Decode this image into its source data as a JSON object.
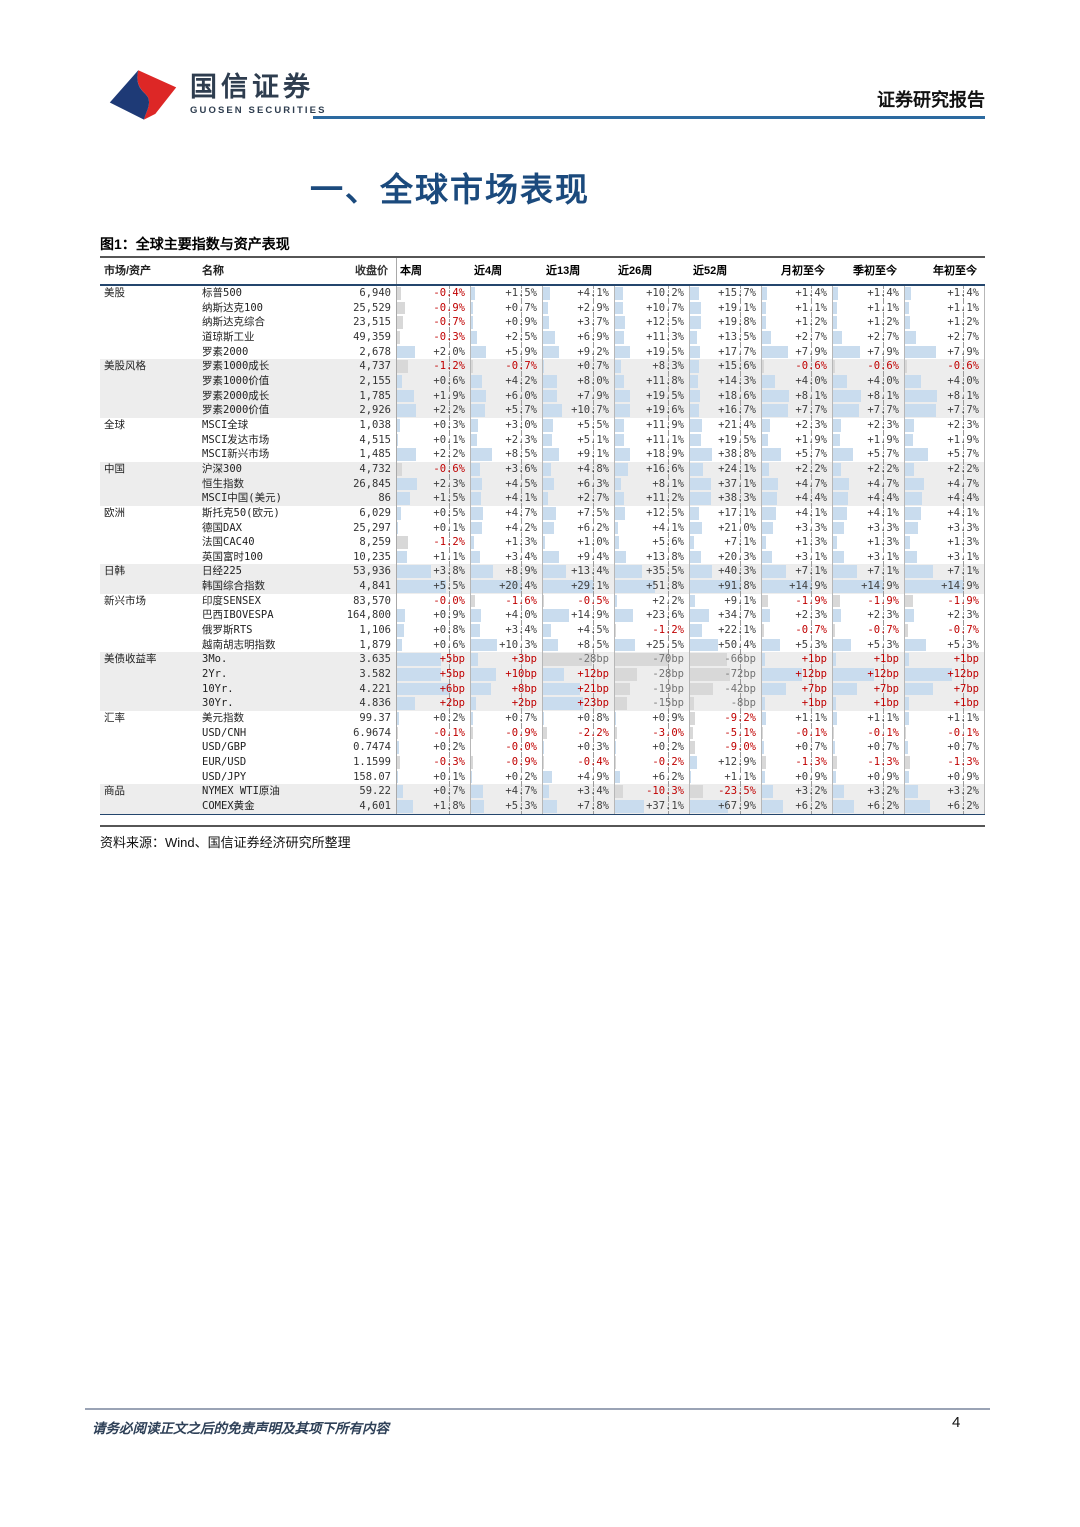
{
  "header": {
    "brand_cn": "国信证券",
    "brand_en": "GUOSEN SECURITIES",
    "report_type": "证券研究报告"
  },
  "section_title": "一、全球市场表现",
  "figure_caption": "图1：全球主要指数与资产表现",
  "source_note": "资料来源：Wind、国信证券经济研究所整理",
  "footer": {
    "disclaimer": "请务必阅读正文之后的免责声明及其项下所有内容",
    "page_number": "4"
  },
  "colors": {
    "accent_blue": "#1b4a7d",
    "header_rule_blue": "#2c6aa0",
    "negative_text": "#c00000",
    "bar_positive": "#c9dcee",
    "bar_negative": "#d8d8d8",
    "logo_red": "#dd2726",
    "logo_blue": "#1e3a76"
  },
  "table": {
    "columns": [
      "市场/资产",
      "名称",
      "收盘价",
      "本周",
      "近4周",
      "近13周",
      "近26周",
      "近52周",
      "月初至今",
      "季初至今",
      "年初至今"
    ],
    "groups": [
      {
        "market": "美股",
        "rows": [
          {
            "name": "标普500",
            "close": "6,940",
            "changes": [
              "-0.4%",
              "+1.5%",
              "+4.1%",
              "+10.2%",
              "+15.7%",
              "+1.4%",
              "+1.4%",
              "+1.4%"
            ]
          },
          {
            "name": "纳斯达克100",
            "close": "25,529",
            "changes": [
              "-0.9%",
              "+0.7%",
              "+2.9%",
              "+10.7%",
              "+19.1%",
              "+1.1%",
              "+1.1%",
              "+1.1%"
            ]
          },
          {
            "name": "纳斯达克综合",
            "close": "23,515",
            "changes": [
              "-0.7%",
              "+0.9%",
              "+3.7%",
              "+12.5%",
              "+19.8%",
              "+1.2%",
              "+1.2%",
              "+1.2%"
            ]
          },
          {
            "name": "道琼斯工业",
            "close": "49,359",
            "changes": [
              "-0.3%",
              "+2.5%",
              "+6.9%",
              "+11.3%",
              "+13.5%",
              "+2.7%",
              "+2.7%",
              "+2.7%"
            ]
          },
          {
            "name": "罗素2000",
            "close": "2,678",
            "changes": [
              "+2.0%",
              "+5.9%",
              "+9.2%",
              "+19.5%",
              "+17.7%",
              "+7.9%",
              "+7.9%",
              "+7.9%"
            ]
          }
        ]
      },
      {
        "market": "美股风格",
        "rows": [
          {
            "name": "罗素1000成长",
            "close": "4,737",
            "changes": [
              "-1.2%",
              "-0.7%",
              "+0.7%",
              "+8.3%",
              "+15.6%",
              "-0.6%",
              "-0.6%",
              "-0.6%"
            ]
          },
          {
            "name": "罗素1000价值",
            "close": "2,155",
            "changes": [
              "+0.6%",
              "+4.2%",
              "+8.0%",
              "+11.8%",
              "+14.3%",
              "+4.0%",
              "+4.0%",
              "+4.0%"
            ]
          },
          {
            "name": "罗素2000成长",
            "close": "1,785",
            "changes": [
              "+1.9%",
              "+6.0%",
              "+7.9%",
              "+19.5%",
              "+18.6%",
              "+8.1%",
              "+8.1%",
              "+8.1%"
            ]
          },
          {
            "name": "罗素2000价值",
            "close": "2,926",
            "changes": [
              "+2.2%",
              "+5.7%",
              "+10.7%",
              "+19.6%",
              "+16.7%",
              "+7.7%",
              "+7.7%",
              "+7.7%"
            ]
          }
        ]
      },
      {
        "market": "全球",
        "rows": [
          {
            "name": "MSCI全球",
            "close": "1,038",
            "changes": [
              "+0.3%",
              "+3.0%",
              "+5.5%",
              "+11.9%",
              "+21.4%",
              "+2.3%",
              "+2.3%",
              "+2.3%"
            ]
          },
          {
            "name": "MSCI发达市场",
            "close": "4,515",
            "changes": [
              "+0.1%",
              "+2.3%",
              "+5.1%",
              "+11.1%",
              "+19.5%",
              "+1.9%",
              "+1.9%",
              "+1.9%"
            ]
          },
          {
            "name": "MSCI新兴市场",
            "close": "1,485",
            "changes": [
              "+2.2%",
              "+8.5%",
              "+9.1%",
              "+18.9%",
              "+38.8%",
              "+5.7%",
              "+5.7%",
              "+5.7%"
            ]
          }
        ]
      },
      {
        "market": "中国",
        "rows": [
          {
            "name": "沪深300",
            "close": "4,732",
            "changes": [
              "-0.6%",
              "+3.6%",
              "+4.8%",
              "+16.6%",
              "+24.1%",
              "+2.2%",
              "+2.2%",
              "+2.2%"
            ]
          },
          {
            "name": "恒生指数",
            "close": "26,845",
            "changes": [
              "+2.3%",
              "+4.5%",
              "+6.3%",
              "+8.1%",
              "+37.1%",
              "+4.7%",
              "+4.7%",
              "+4.7%"
            ]
          },
          {
            "name": "MSCI中国(美元)",
            "close": "86",
            "changes": [
              "+1.5%",
              "+4.1%",
              "+2.7%",
              "+11.2%",
              "+38.3%",
              "+4.4%",
              "+4.4%",
              "+4.4%"
            ]
          }
        ]
      },
      {
        "market": "欧洲",
        "rows": [
          {
            "name": "斯托克50(欧元)",
            "close": "6,029",
            "changes": [
              "+0.5%",
              "+4.7%",
              "+7.5%",
              "+12.5%",
              "+17.1%",
              "+4.1%",
              "+4.1%",
              "+4.1%"
            ]
          },
          {
            "name": "德国DAX",
            "close": "25,297",
            "changes": [
              "+0.1%",
              "+4.2%",
              "+6.2%",
              "+4.1%",
              "+21.0%",
              "+3.3%",
              "+3.3%",
              "+3.3%"
            ]
          },
          {
            "name": "法国CAC40",
            "close": "8,259",
            "changes": [
              "-1.2%",
              "+1.3%",
              "+1.0%",
              "+5.6%",
              "+7.1%",
              "+1.3%",
              "+1.3%",
              "+1.3%"
            ]
          },
          {
            "name": "英国富时100",
            "close": "10,235",
            "changes": [
              "+1.1%",
              "+3.4%",
              "+9.4%",
              "+13.8%",
              "+20.3%",
              "+3.1%",
              "+3.1%",
              "+3.1%"
            ]
          }
        ]
      },
      {
        "market": "日韩",
        "rows": [
          {
            "name": "日经225",
            "close": "53,936",
            "changes": [
              "+3.8%",
              "+8.9%",
              "+13.4%",
              "+35.5%",
              "+40.3%",
              "+7.1%",
              "+7.1%",
              "+7.1%"
            ]
          },
          {
            "name": "韩国综合指数",
            "close": "4,841",
            "changes": [
              "+5.5%",
              "+20.4%",
              "+29.1%",
              "+51.8%",
              "+91.8%",
              "+14.9%",
              "+14.9%",
              "+14.9%"
            ]
          }
        ]
      },
      {
        "market": "新兴市场",
        "rows": [
          {
            "name": "印度SENSEX",
            "close": "83,570",
            "changes": [
              "-0.0%",
              "-1.6%",
              "-0.5%",
              "+2.2%",
              "+9.1%",
              "-1.9%",
              "-1.9%",
              "-1.9%"
            ]
          },
          {
            "name": "巴西IBOVESPA",
            "close": "164,800",
            "changes": [
              "+0.9%",
              "+4.0%",
              "+14.9%",
              "+23.6%",
              "+34.7%",
              "+2.3%",
              "+2.3%",
              "+2.3%"
            ]
          },
          {
            "name": "俄罗斯RTS",
            "close": "1,106",
            "changes": [
              "+0.8%",
              "+3.4%",
              "+4.5%",
              "-1.2%",
              "+22.1%",
              "-0.7%",
              "-0.7%",
              "-0.7%"
            ]
          },
          {
            "name": "越南胡志明指数",
            "close": "1,879",
            "changes": [
              "+0.6%",
              "+10.3%",
              "+8.5%",
              "+25.5%",
              "+50.4%",
              "+5.3%",
              "+5.3%",
              "+5.3%"
            ]
          }
        ]
      },
      {
        "market": "美债收益率",
        "rows": [
          {
            "name": "3Mo.",
            "close": "3.635",
            "changes": [
              "+5bp",
              "+3bp",
              "-28bp",
              "-70bp",
              "-66bp",
              "+1bp",
              "+1bp",
              "+1bp"
            ]
          },
          {
            "name": "2Yr.",
            "close": "3.582",
            "changes": [
              "+5bp",
              "+10bp",
              "+12bp",
              "-28bp",
              "-72bp",
              "+12bp",
              "+12bp",
              "+12bp"
            ]
          },
          {
            "name": "10Yr.",
            "close": "4.221",
            "changes": [
              "+6bp",
              "+8bp",
              "+21bp",
              "-19bp",
              "-42bp",
              "+7bp",
              "+7bp",
              "+7bp"
            ]
          },
          {
            "name": "30Yr.",
            "close": "4.836",
            "changes": [
              "+2bp",
              "+2bp",
              "+23bp",
              "-15bp",
              "-8bp",
              "+1bp",
              "+1bp",
              "+1bp"
            ]
          }
        ]
      },
      {
        "market": "汇率",
        "rows": [
          {
            "name": "美元指数",
            "close": "99.37",
            "changes": [
              "+0.2%",
              "+0.7%",
              "+0.8%",
              "+0.9%",
              "-9.2%",
              "+1.1%",
              "+1.1%",
              "+1.1%"
            ]
          },
          {
            "name": "USD/CNH",
            "close": "6.9674",
            "changes": [
              "-0.1%",
              "-0.9%",
              "-2.2%",
              "-3.0%",
              "-5.1%",
              "-0.1%",
              "-0.1%",
              "-0.1%"
            ]
          },
          {
            "name": "USD/GBP",
            "close": "0.7474",
            "changes": [
              "+0.2%",
              "-0.0%",
              "+0.3%",
              "+0.2%",
              "-9.0%",
              "+0.7%",
              "+0.7%",
              "+0.7%"
            ]
          },
          {
            "name": "EUR/USD",
            "close": "1.1599",
            "changes": [
              "-0.3%",
              "-0.9%",
              "-0.4%",
              "-0.2%",
              "+12.9%",
              "-1.3%",
              "-1.3%",
              "-1.3%"
            ]
          },
          {
            "name": "USD/JPY",
            "close": "158.07",
            "changes": [
              "+0.1%",
              "+0.2%",
              "+4.9%",
              "+6.2%",
              "+1.1%",
              "+0.9%",
              "+0.9%",
              "+0.9%"
            ]
          }
        ]
      },
      {
        "market": "商品",
        "rows": [
          {
            "name": "NYMEX WTI原油",
            "close": "59.22",
            "changes": [
              "+0.7%",
              "+4.7%",
              "+3.4%",
              "-10.3%",
              "-23.5%",
              "+3.2%",
              "+3.2%",
              "+3.2%"
            ]
          },
          {
            "name": "COMEX黄金",
            "close": "4,601",
            "changes": [
              "+1.8%",
              "+5.3%",
              "+7.8%",
              "+37.1%",
              "+67.9%",
              "+6.2%",
              "+6.2%",
              "+6.2%"
            ]
          }
        ]
      }
    ]
  }
}
